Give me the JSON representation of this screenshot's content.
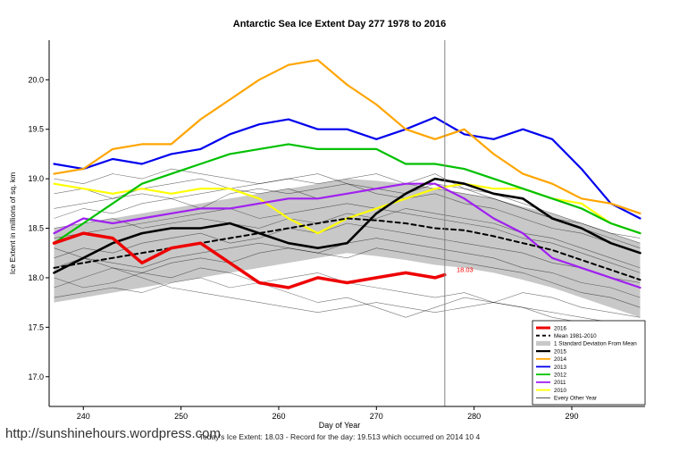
{
  "page": {
    "url_text": "http://sunshinehours.wordpress.com",
    "footer": "Today's Ice Extent: 18.03  - Record for the day: 19.513 which occurred on 2014 10 4"
  },
  "chart_data": {
    "type": "line",
    "title": "Antarctic Sea Ice Extent Day 277 1978 to 2016",
    "xlabel": "Day of Year",
    "ylabel": "Ice Extent in millions of sq. km",
    "xlim": [
      236.5,
      297.5
    ],
    "ylim": [
      16.7,
      20.4
    ],
    "xticks": [
      240,
      250,
      260,
      270,
      280,
      290
    ],
    "yticks": [
      17.0,
      17.5,
      18.0,
      18.5,
      19.0,
      19.5,
      20.0
    ],
    "grid": false,
    "vline_x": 277,
    "annotation": {
      "text": "18.03",
      "x": 278.2,
      "y": 18.06,
      "color": "#FF0000"
    },
    "x": [
      237,
      240,
      243,
      246,
      249,
      252,
      255,
      258,
      261,
      264,
      267,
      270,
      273,
      276,
      279,
      282,
      285,
      288,
      291,
      294,
      297
    ],
    "band": {
      "name": "1 Standard Deviation From Mean",
      "color": "#C8C8C8",
      "upper": [
        18.5,
        18.55,
        18.6,
        18.65,
        18.7,
        18.75,
        18.8,
        18.85,
        18.9,
        18.95,
        19.0,
        18.98,
        18.95,
        18.9,
        18.85,
        18.8,
        18.72,
        18.65,
        18.55,
        18.45,
        18.35
      ],
      "lower": [
        17.75,
        17.8,
        17.85,
        17.9,
        17.95,
        18.0,
        18.05,
        18.1,
        18.15,
        18.2,
        18.25,
        18.22,
        18.18,
        18.13,
        18.1,
        18.05,
        17.98,
        17.9,
        17.8,
        17.7,
        17.6
      ]
    },
    "series": [
      {
        "name": "2016",
        "color": "#EE0000",
        "width": 3.5,
        "x": [
          237,
          240,
          243,
          246,
          249,
          252,
          255,
          258,
          261,
          264,
          267,
          270,
          273,
          276,
          277
        ],
        "values": [
          18.35,
          18.45,
          18.4,
          18.15,
          18.3,
          18.35,
          18.15,
          17.95,
          17.9,
          18.0,
          17.95,
          18.0,
          18.05,
          18.0,
          18.03
        ]
      },
      {
        "name": "Mean 1981-2010",
        "color": "#000000",
        "width": 2,
        "dash": "5,4",
        "values": [
          18.1,
          18.15,
          18.2,
          18.25,
          18.3,
          18.35,
          18.4,
          18.45,
          18.5,
          18.55,
          18.6,
          18.58,
          18.55,
          18.5,
          18.48,
          18.42,
          18.35,
          18.28,
          18.18,
          18.08,
          17.98
        ]
      },
      {
        "name": "2015",
        "color": "#000000",
        "width": 2.6,
        "values": [
          18.05,
          18.2,
          18.35,
          18.45,
          18.5,
          18.5,
          18.55,
          18.45,
          18.35,
          18.3,
          18.35,
          18.65,
          18.85,
          19.0,
          18.95,
          18.85,
          18.8,
          18.6,
          18.5,
          18.35,
          18.25
        ]
      },
      {
        "name": "2014",
        "color": "#FFA500",
        "width": 2.2,
        "values": [
          19.05,
          19.1,
          19.3,
          19.35,
          19.35,
          19.6,
          19.8,
          20.0,
          20.15,
          20.2,
          19.95,
          19.75,
          19.5,
          19.4,
          19.5,
          19.25,
          19.05,
          18.95,
          18.8,
          18.75,
          18.65
        ]
      },
      {
        "name": "2013",
        "color": "#0000EE",
        "width": 2.2,
        "values": [
          19.15,
          19.1,
          19.2,
          19.15,
          19.25,
          19.3,
          19.45,
          19.55,
          19.6,
          19.5,
          19.5,
          19.4,
          19.5,
          19.62,
          19.45,
          19.4,
          19.5,
          19.4,
          19.1,
          18.75,
          18.6
        ]
      },
      {
        "name": "2012",
        "color": "#00C000",
        "width": 2.2,
        "values": [
          18.35,
          18.55,
          18.75,
          18.95,
          19.05,
          19.15,
          19.25,
          19.3,
          19.35,
          19.3,
          19.3,
          19.3,
          19.15,
          19.15,
          19.1,
          19.0,
          18.9,
          18.8,
          18.7,
          18.55,
          18.45
        ]
      },
      {
        "name": "2011",
        "color": "#A020F0",
        "width": 2.2,
        "values": [
          18.45,
          18.6,
          18.55,
          18.6,
          18.65,
          18.7,
          18.7,
          18.75,
          18.8,
          18.8,
          18.85,
          18.9,
          18.95,
          18.95,
          18.8,
          18.6,
          18.45,
          18.2,
          18.1,
          18.0,
          17.9
        ]
      },
      {
        "name": "2010",
        "color": "#FFFF00",
        "width": 2.2,
        "values": [
          18.95,
          18.9,
          18.85,
          18.9,
          18.85,
          18.9,
          18.9,
          18.8,
          18.6,
          18.45,
          18.6,
          18.7,
          18.8,
          18.9,
          18.95,
          18.9,
          18.9,
          18.8,
          18.75,
          18.55,
          18.45
        ]
      }
    ],
    "other_years": {
      "name": "Every Other Year",
      "color": "#000000",
      "width": 0.6,
      "series": [
        [
          19.0,
          18.95,
          19.05,
          19.0,
          19.1,
          19.05,
          19.0,
          18.95,
          19.0,
          19.05,
          18.95,
          18.9,
          18.95,
          19.05,
          18.9,
          18.8,
          18.7,
          18.6,
          18.5,
          18.4,
          18.3
        ],
        [
          18.6,
          18.7,
          18.65,
          18.75,
          18.8,
          18.7,
          18.85,
          18.9,
          18.85,
          18.9,
          18.95,
          18.85,
          18.8,
          18.85,
          18.75,
          18.7,
          18.6,
          18.5,
          18.45,
          18.35,
          18.25
        ],
        [
          17.8,
          17.85,
          17.9,
          17.85,
          17.95,
          18.0,
          17.9,
          17.95,
          18.0,
          18.05,
          17.95,
          17.9,
          17.85,
          17.8,
          17.85,
          17.75,
          17.7,
          17.65,
          17.6,
          17.55,
          17.5
        ],
        [
          18.2,
          18.3,
          18.25,
          18.35,
          18.4,
          18.45,
          18.35,
          18.4,
          18.5,
          18.45,
          18.55,
          18.5,
          18.45,
          18.4,
          18.35,
          18.3,
          18.25,
          18.15,
          18.1,
          18.0,
          17.95
        ],
        [
          18.0,
          17.9,
          17.95,
          18.05,
          18.0,
          18.1,
          18.05,
          17.95,
          17.85,
          17.75,
          17.8,
          17.7,
          17.6,
          17.7,
          17.8,
          17.75,
          17.85,
          17.8,
          17.7,
          17.65,
          17.6
        ],
        [
          18.4,
          18.45,
          18.5,
          18.55,
          18.6,
          18.65,
          18.7,
          18.6,
          18.65,
          18.7,
          18.75,
          18.7,
          18.65,
          18.6,
          18.55,
          18.5,
          18.4,
          18.35,
          18.25,
          18.15,
          18.05
        ],
        [
          18.1,
          18.2,
          18.15,
          18.1,
          18.2,
          18.25,
          18.3,
          18.35,
          18.3,
          18.25,
          18.35,
          18.4,
          18.35,
          18.3,
          18.25,
          18.2,
          18.1,
          18.05,
          17.95,
          17.9,
          17.8
        ],
        [
          18.85,
          18.9,
          18.8,
          18.9,
          18.95,
          19.0,
          18.9,
          18.85,
          18.9,
          18.8,
          18.85,
          18.9,
          18.85,
          18.95,
          18.9,
          18.85,
          18.75,
          18.65,
          18.55,
          18.45,
          18.4
        ],
        [
          17.9,
          18.0,
          18.1,
          18.05,
          18.15,
          18.2,
          18.15,
          18.25,
          18.3,
          18.25,
          18.2,
          18.3,
          18.25,
          18.2,
          18.15,
          18.1,
          18.05,
          17.95,
          17.85,
          17.8,
          17.7
        ],
        [
          18.5,
          18.55,
          18.6,
          18.5,
          18.55,
          18.6,
          18.55,
          18.5,
          18.6,
          18.55,
          18.65,
          18.6,
          18.7,
          18.65,
          18.6,
          18.55,
          18.45,
          18.4,
          18.3,
          18.2,
          18.1
        ],
        [
          18.3,
          18.2,
          18.1,
          18.0,
          17.9,
          17.85,
          17.8,
          17.75,
          17.7,
          17.65,
          17.7,
          17.75,
          17.7,
          17.65,
          17.7,
          17.75,
          17.7,
          17.6,
          17.55,
          17.5,
          17.45
        ],
        [
          18.7,
          18.75,
          18.8,
          18.85,
          18.8,
          18.85,
          18.9,
          18.95,
          19.0,
          18.95,
          19.0,
          19.05,
          18.95,
          18.9,
          18.85,
          18.8,
          18.7,
          18.6,
          18.55,
          18.45,
          18.35
        ]
      ]
    },
    "legend": {
      "position": "bottom-right",
      "entries": [
        {
          "label": "2016",
          "color": "#EE0000",
          "kind": "line",
          "width": 3
        },
        {
          "label": "Mean 1981-2010",
          "color": "#000000",
          "kind": "dashed",
          "width": 1.8
        },
        {
          "label": "1 Standard Deviation From Mean",
          "color": "#C8C8C8",
          "kind": "band"
        },
        {
          "label": "2015",
          "color": "#000000",
          "kind": "line",
          "width": 2.2
        },
        {
          "label": "2014",
          "color": "#FFA500",
          "kind": "line",
          "width": 1.8
        },
        {
          "label": "2013",
          "color": "#0000EE",
          "kind": "line",
          "width": 1.8
        },
        {
          "label": "2012",
          "color": "#00C000",
          "kind": "line",
          "width": 1.8
        },
        {
          "label": "2011",
          "color": "#A020F0",
          "kind": "line",
          "width": 1.8
        },
        {
          "label": "2010",
          "color": "#FFFF00",
          "kind": "line",
          "width": 1.8
        },
        {
          "label": "Every Other Year",
          "color": "#000000",
          "kind": "line",
          "width": 0.7
        }
      ]
    }
  }
}
